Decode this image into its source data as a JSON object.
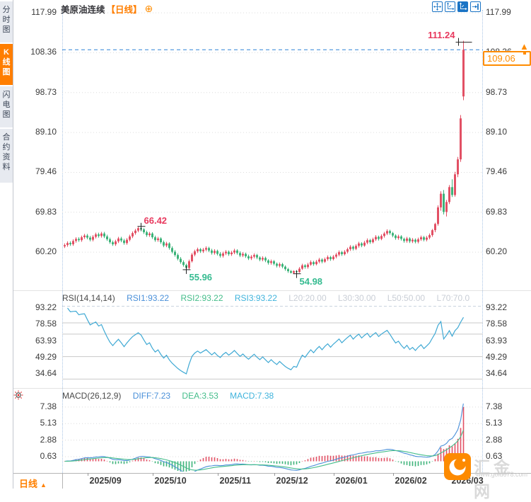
{
  "colors": {
    "accent_orange": "#ff7e00",
    "tag_orange": "#ff8c00",
    "up": "#e25064",
    "down": "#3eb37a",
    "annotation_up": "#e8395e",
    "annotation_down": "#35bb90",
    "line_blue": "#4a90d9",
    "line_green": "#44bd8a",
    "line_cyan": "#3fa9d4",
    "price_line": "#2f82d8",
    "grid_dot": "#dcdcdc",
    "grid_solid": "#c9c9c9",
    "marker": "#222222"
  },
  "sidebar": {
    "tabs": [
      {
        "id": "time-share",
        "label": "分时图",
        "active": false
      },
      {
        "id": "kline",
        "label": "K线图",
        "active": true
      },
      {
        "id": "flash",
        "label": "闪电图",
        "active": false
      },
      {
        "id": "contract-info",
        "label": "合约资料",
        "active": false
      }
    ]
  },
  "header": {
    "symbol": "美原油连续",
    "period": "【日线】",
    "add_icon": "⊕"
  },
  "toolbar": {
    "icons": [
      "move-tool-icon",
      "axis-zoom-icon",
      "axis-zoom-active-icon",
      "pan-right-icon"
    ]
  },
  "rsi": {
    "title": "RSI(14,14,14)",
    "items": [
      "RSI1:93.22",
      "RSI2:93.22",
      "RSI3:93.22",
      "L20:20.00",
      "L30:30.00",
      "L50:50.00",
      "L70:70.0"
    ],
    "axis": [
      "93.22",
      "78.58",
      "63.93",
      "49.29",
      "34.64"
    ],
    "gridline_levels": [
      80,
      70,
      50,
      30
    ]
  },
  "macd": {
    "title": "MACD(26,12,9)",
    "items": [
      "DIFF:7.23",
      "DEA:3.53",
      "MACD:7.38"
    ],
    "axis": [
      "7.38",
      "5.13",
      "2.88",
      "0.63"
    ]
  },
  "main_chart": {
    "last_price_label": "109.06"
  },
  "bottom": {
    "period_label": "日线",
    "period_arrow": "▲"
  },
  "watermark": {
    "name": "汇金网",
    "url": "www.gold678.com"
  },
  "chart_data": {
    "type": "candlestick",
    "title": "美原油连续",
    "period": "日线",
    "y_axis": [
      "117.99",
      "108.36",
      "98.73",
      "89.10",
      "79.46",
      "69.83",
      "60.20"
    ],
    "last_price": 109.06,
    "indicators": {
      "rsi_params": "(14,14,14)",
      "rsi_current": 93.22,
      "macd_params": "(26,12,9)",
      "diff": 7.23,
      "dea": 3.53,
      "macd": 7.38
    },
    "x_ticks": [
      {
        "label": "2025/09",
        "index": 8
      },
      {
        "label": "2025/10",
        "index": 31
      },
      {
        "label": "2025/11",
        "index": 54
      },
      {
        "label": "2025/12",
        "index": 74
      },
      {
        "label": "2026/01",
        "index": 95
      },
      {
        "label": "2026/02",
        "index": 116
      },
      {
        "label": "2026/03",
        "index": 136
      }
    ],
    "annotations": [
      {
        "text": "111.24",
        "index": 141,
        "price": 111.24,
        "kind": "high",
        "placement": "above-left"
      },
      {
        "text": "66.42",
        "index": 27,
        "price": 66.42,
        "kind": "high",
        "placement": "above-right"
      },
      {
        "text": "55.96",
        "index": 43,
        "price": 55.96,
        "kind": "low",
        "placement": "below-right"
      },
      {
        "text": "54.98",
        "index": 82,
        "price": 54.98,
        "kind": "low",
        "placement": "below-right"
      }
    ],
    "ohlc": [
      [
        61.6,
        62.3,
        61.2,
        61.9
      ],
      [
        61.9,
        62.8,
        61.5,
        62.4
      ],
      [
        62.4,
        62.8,
        61.7,
        62.1
      ],
      [
        62.1,
        63.3,
        61.7,
        62.9
      ],
      [
        62.9,
        63.8,
        62.5,
        63.4
      ],
      [
        63.4,
        63.8,
        62.7,
        63.1
      ],
      [
        63.1,
        64.2,
        62.7,
        63.8
      ],
      [
        63.8,
        64.6,
        63.4,
        64.2
      ],
      [
        64.2,
        64.6,
        63.3,
        63.7
      ],
      [
        63.7,
        64.1,
        62.8,
        63.2
      ],
      [
        63.2,
        64.3,
        62.8,
        63.9
      ],
      [
        63.9,
        64.9,
        63.5,
        64.5
      ],
      [
        64.5,
        64.9,
        63.7,
        64.1
      ],
      [
        64.1,
        65.1,
        63.7,
        64.7
      ],
      [
        64.7,
        65.1,
        63.6,
        64.0
      ],
      [
        64.0,
        64.4,
        62.9,
        63.3
      ],
      [
        63.3,
        63.7,
        62.2,
        62.6
      ],
      [
        62.6,
        63.0,
        61.7,
        62.1
      ],
      [
        62.1,
        63.2,
        61.7,
        62.8
      ],
      [
        62.8,
        63.9,
        62.4,
        63.5
      ],
      [
        63.5,
        63.9,
        62.6,
        63.0
      ],
      [
        63.0,
        63.4,
        62.0,
        62.4
      ],
      [
        62.4,
        63.6,
        62.0,
        63.2
      ],
      [
        63.2,
        64.4,
        62.8,
        64.0
      ],
      [
        64.0,
        65.2,
        63.6,
        64.8
      ],
      [
        64.8,
        65.8,
        64.4,
        65.4
      ],
      [
        65.4,
        66.3,
        65.0,
        66.0
      ],
      [
        66.0,
        66.42,
        65.2,
        65.7
      ],
      [
        65.7,
        66.0,
        64.6,
        65.0
      ],
      [
        65.0,
        65.4,
        63.9,
        64.3
      ],
      [
        64.3,
        65.1,
        63.9,
        64.7
      ],
      [
        64.7,
        65.0,
        63.4,
        63.8
      ],
      [
        63.8,
        64.2,
        62.7,
        63.1
      ],
      [
        63.1,
        63.9,
        62.7,
        63.5
      ],
      [
        63.5,
        63.8,
        62.2,
        62.6
      ],
      [
        62.6,
        63.0,
        61.4,
        61.8
      ],
      [
        61.8,
        62.7,
        61.4,
        62.3
      ],
      [
        62.3,
        62.6,
        60.8,
        61.2
      ],
      [
        61.2,
        61.6,
        59.9,
        60.3
      ],
      [
        60.3,
        60.7,
        59.1,
        59.5
      ],
      [
        59.5,
        59.9,
        58.2,
        58.6
      ],
      [
        58.6,
        59.0,
        57.4,
        57.8
      ],
      [
        57.8,
        58.2,
        56.7,
        57.1
      ],
      [
        57.1,
        57.4,
        55.96,
        56.4
      ],
      [
        56.4,
        58.4,
        56.1,
        58.0
      ],
      [
        58.0,
        60.0,
        57.7,
        59.6
      ],
      [
        59.6,
        60.8,
        59.2,
        60.4
      ],
      [
        60.4,
        61.3,
        60.0,
        60.9
      ],
      [
        60.9,
        61.2,
        60.0,
        60.4
      ],
      [
        60.4,
        61.2,
        60.0,
        60.8
      ],
      [
        60.8,
        61.6,
        60.4,
        61.2
      ],
      [
        61.2,
        61.5,
        60.2,
        60.6
      ],
      [
        60.6,
        61.0,
        59.6,
        60.0
      ],
      [
        60.0,
        60.9,
        59.6,
        60.5
      ],
      [
        60.5,
        60.8,
        59.4,
        59.8
      ],
      [
        59.8,
        60.2,
        58.9,
        59.3
      ],
      [
        59.3,
        60.3,
        58.9,
        59.9
      ],
      [
        59.9,
        60.7,
        59.5,
        60.3
      ],
      [
        60.3,
        60.6,
        59.3,
        59.7
      ],
      [
        59.7,
        60.5,
        59.3,
        60.1
      ],
      [
        60.1,
        61.0,
        59.7,
        60.6
      ],
      [
        60.6,
        60.9,
        59.6,
        60.0
      ],
      [
        60.0,
        60.4,
        59.0,
        59.4
      ],
      [
        59.4,
        60.2,
        59.0,
        59.8
      ],
      [
        59.8,
        60.1,
        58.8,
        59.2
      ],
      [
        59.2,
        59.6,
        58.3,
        58.7
      ],
      [
        58.7,
        59.5,
        58.3,
        59.1
      ],
      [
        59.1,
        59.9,
        58.7,
        59.5
      ],
      [
        59.5,
        59.8,
        58.5,
        58.9
      ],
      [
        58.9,
        59.2,
        58.0,
        58.4
      ],
      [
        58.4,
        59.2,
        58.0,
        58.8
      ],
      [
        58.8,
        59.1,
        57.8,
        58.2
      ],
      [
        58.2,
        58.5,
        57.2,
        57.6
      ],
      [
        57.6,
        58.4,
        57.2,
        58.0
      ],
      [
        58.0,
        58.3,
        57.0,
        57.4
      ],
      [
        57.4,
        57.7,
        56.5,
        56.9
      ],
      [
        56.9,
        57.7,
        56.5,
        57.3
      ],
      [
        57.3,
        57.6,
        56.3,
        56.7
      ],
      [
        56.7,
        57.0,
        55.7,
        56.1
      ],
      [
        56.1,
        56.4,
        55.2,
        55.6
      ],
      [
        55.6,
        55.9,
        55.05,
        55.2
      ],
      [
        55.2,
        55.8,
        55.0,
        55.6
      ],
      [
        55.6,
        55.7,
        54.98,
        55.4
      ],
      [
        55.4,
        56.6,
        55.2,
        56.2
      ],
      [
        56.2,
        57.4,
        55.9,
        57.0
      ],
      [
        57.0,
        57.3,
        56.2,
        56.6
      ],
      [
        56.6,
        57.6,
        56.2,
        57.2
      ],
      [
        57.2,
        58.2,
        56.9,
        57.8
      ],
      [
        57.8,
        58.1,
        56.9,
        57.3
      ],
      [
        57.3,
        58.3,
        57.0,
        57.9
      ],
      [
        57.9,
        58.8,
        57.5,
        58.4
      ],
      [
        58.4,
        58.7,
        57.5,
        57.9
      ],
      [
        57.9,
        58.9,
        57.6,
        58.5
      ],
      [
        58.5,
        59.4,
        58.1,
        59.0
      ],
      [
        59.0,
        59.3,
        58.1,
        58.5
      ],
      [
        58.5,
        59.5,
        58.2,
        59.1
      ],
      [
        59.1,
        60.0,
        58.7,
        59.6
      ],
      [
        59.6,
        60.6,
        59.2,
        60.2
      ],
      [
        60.2,
        60.5,
        59.3,
        59.7
      ],
      [
        59.7,
        60.7,
        59.4,
        60.3
      ],
      [
        60.3,
        61.3,
        59.9,
        60.9
      ],
      [
        60.9,
        61.9,
        60.5,
        61.5
      ],
      [
        61.5,
        61.8,
        60.6,
        61.0
      ],
      [
        61.0,
        62.1,
        60.7,
        61.7
      ],
      [
        61.7,
        62.7,
        61.3,
        62.3
      ],
      [
        62.3,
        62.6,
        61.4,
        61.8
      ],
      [
        61.8,
        62.9,
        61.5,
        62.5
      ],
      [
        62.5,
        63.5,
        62.1,
        63.1
      ],
      [
        63.1,
        63.4,
        62.2,
        62.6
      ],
      [
        62.6,
        63.7,
        62.3,
        63.3
      ],
      [
        63.3,
        64.3,
        62.9,
        63.9
      ],
      [
        63.9,
        64.2,
        63.0,
        63.4
      ],
      [
        63.4,
        64.5,
        63.1,
        64.1
      ],
      [
        64.1,
        65.1,
        63.7,
        64.7
      ],
      [
        64.7,
        65.7,
        64.3,
        65.3
      ],
      [
        65.3,
        65.6,
        64.4,
        64.8
      ],
      [
        64.8,
        65.1,
        63.8,
        64.2
      ],
      [
        64.2,
        64.5,
        63.2,
        63.6
      ],
      [
        63.6,
        64.4,
        63.2,
        64.0
      ],
      [
        64.0,
        64.3,
        63.0,
        63.4
      ],
      [
        63.4,
        63.7,
        62.5,
        62.9
      ],
      [
        62.9,
        63.9,
        62.5,
        63.5
      ],
      [
        63.5,
        63.8,
        62.4,
        62.8
      ],
      [
        62.8,
        63.6,
        62.4,
        63.2
      ],
      [
        63.2,
        63.5,
        62.3,
        62.7
      ],
      [
        62.7,
        63.7,
        62.3,
        63.3
      ],
      [
        63.3,
        64.2,
        62.9,
        63.8
      ],
      [
        63.8,
        64.1,
        62.8,
        63.2
      ],
      [
        63.2,
        64.1,
        62.8,
        63.7
      ],
      [
        63.7,
        64.7,
        63.3,
        64.3
      ],
      [
        64.3,
        65.8,
        63.9,
        65.5
      ],
      [
        65.5,
        67.3,
        65.0,
        67.0
      ],
      [
        67.0,
        71.5,
        66.6,
        71.0
      ],
      [
        71.0,
        74.9,
        70.2,
        74.3
      ],
      [
        74.3,
        75.2,
        69.3,
        69.9
      ],
      [
        69.9,
        72.8,
        68.8,
        72.3
      ],
      [
        72.3,
        76.4,
        71.8,
        75.9
      ],
      [
        75.9,
        77.8,
        73.5,
        74.0
      ],
      [
        74.0,
        79.6,
        73.6,
        79.0
      ],
      [
        79.0,
        83.2,
        78.3,
        82.6
      ],
      [
        82.6,
        93.3,
        82.0,
        92.5
      ],
      [
        97.8,
        111.24,
        96.9,
        109.06
      ]
    ]
  }
}
